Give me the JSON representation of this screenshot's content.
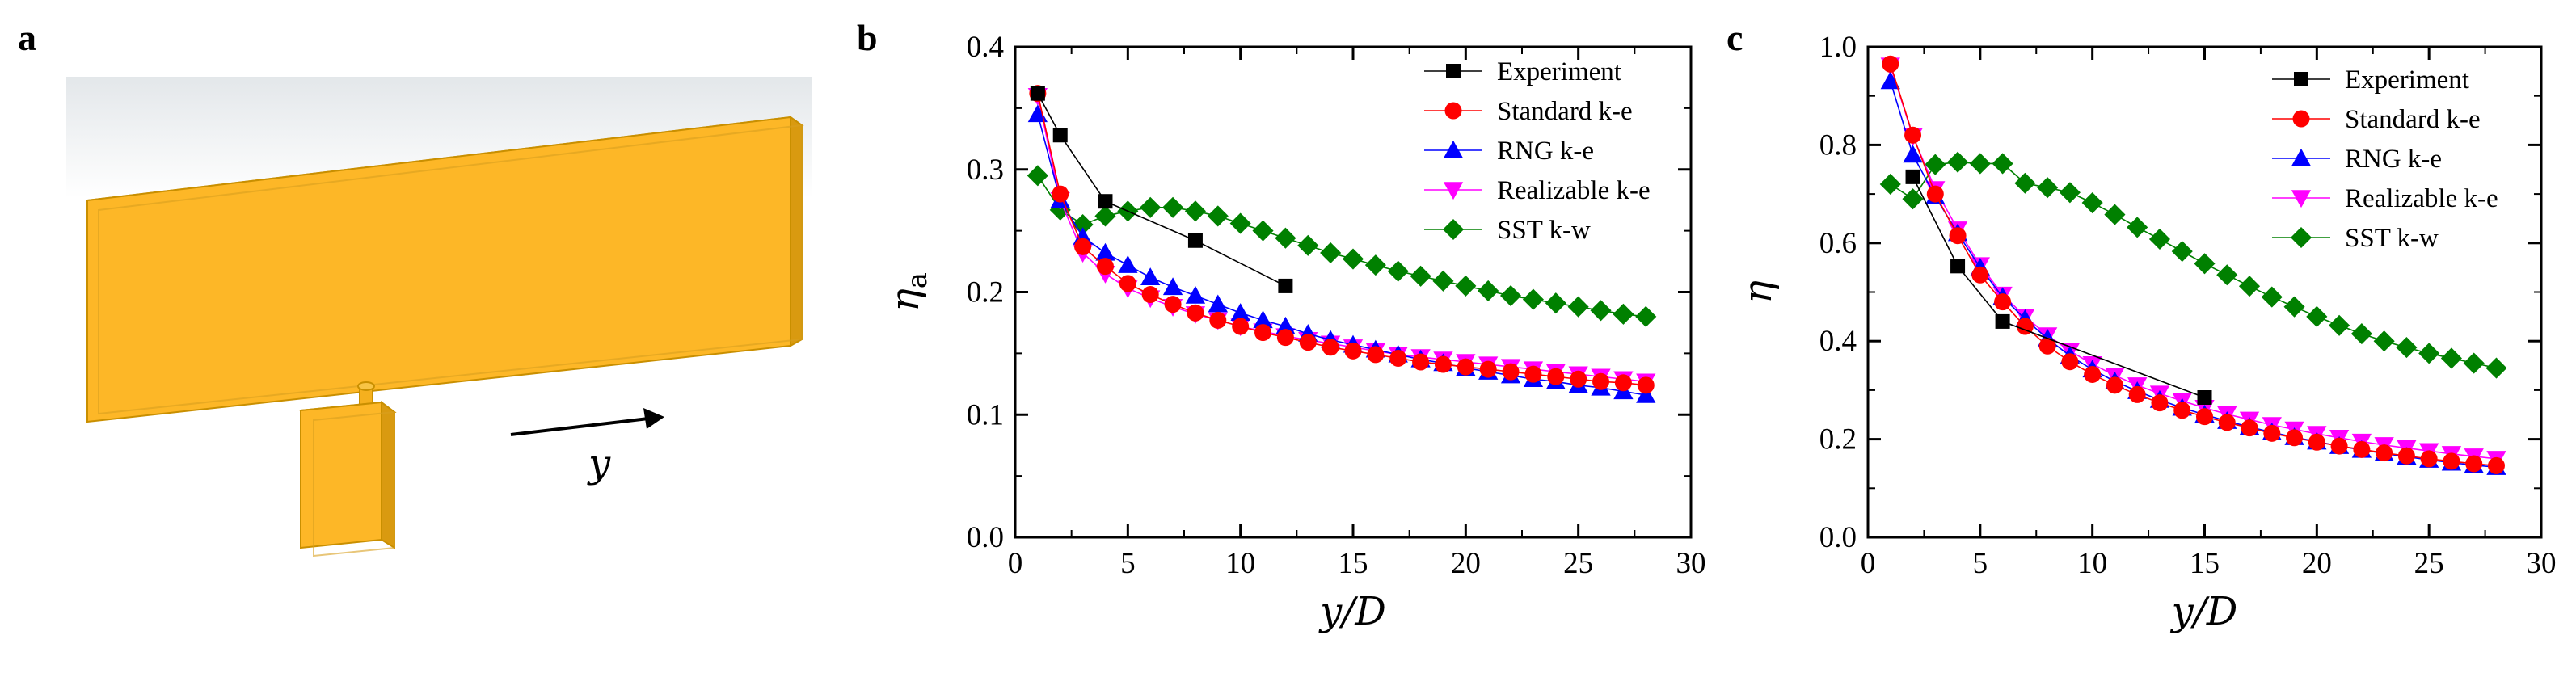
{
  "panels": {
    "a": {
      "letter": "a",
      "arrow_label": "y"
    },
    "b": {
      "letter": "b"
    },
    "c": {
      "letter": "c"
    }
  },
  "series_styles": [
    {
      "name": "Experiment",
      "color": "#000000",
      "marker": "square"
    },
    {
      "name": "Standard k-e",
      "color": "#ff0000",
      "marker": "circle"
    },
    {
      "name": "RNG k-e",
      "color": "#0000ff",
      "marker": "triangle-up"
    },
    {
      "name": "Realizable k-e",
      "color": "#ff00ff",
      "marker": "triangle-down"
    },
    {
      "name": "SST k-w",
      "color": "#008000",
      "marker": "diamond"
    }
  ],
  "chart_data": [
    {
      "panel": "b",
      "type": "line",
      "xlabel": "y/D",
      "ylabel": "η_a",
      "ylabel_main": "η",
      "ylabel_sub": "a",
      "xlim": [
        0,
        30
      ],
      "ylim": [
        0,
        0.4
      ],
      "xticks": [
        "0",
        "5",
        "10",
        "15",
        "20",
        "25",
        "30"
      ],
      "yticks": [
        "0.0",
        "0.1",
        "0.2",
        "0.3",
        "0.4"
      ],
      "legend_position": "top-right",
      "series": [
        {
          "name": "Experiment",
          "x": [
            1,
            2,
            4,
            8,
            12
          ],
          "y": [
            0.362,
            0.328,
            0.274,
            0.242,
            0.205
          ]
        },
        {
          "name": "Standard k-e",
          "x": [
            1,
            2,
            3,
            4,
            5,
            6,
            7,
            8,
            9,
            10,
            11,
            12,
            13,
            14,
            15,
            16,
            17,
            18,
            19,
            20,
            21,
            22,
            23,
            24,
            25,
            26,
            27,
            28
          ],
          "y": [
            0.362,
            0.28,
            0.237,
            0.221,
            0.207,
            0.198,
            0.19,
            0.183,
            0.177,
            0.172,
            0.167,
            0.163,
            0.159,
            0.155,
            0.152,
            0.149,
            0.146,
            0.143,
            0.141,
            0.139,
            0.137,
            0.135,
            0.133,
            0.131,
            0.129,
            0.127,
            0.126,
            0.124
          ]
        },
        {
          "name": "RNG k-e",
          "x": [
            1,
            2,
            3,
            4,
            5,
            6,
            7,
            8,
            9,
            10,
            11,
            12,
            13,
            14,
            15,
            16,
            17,
            18,
            19,
            20,
            21,
            22,
            23,
            24,
            25,
            26,
            27,
            28
          ],
          "y": [
            0.345,
            0.275,
            0.245,
            0.232,
            0.222,
            0.212,
            0.204,
            0.197,
            0.19,
            0.183,
            0.177,
            0.172,
            0.166,
            0.161,
            0.157,
            0.153,
            0.149,
            0.145,
            0.142,
            0.138,
            0.135,
            0.132,
            0.129,
            0.127,
            0.124,
            0.122,
            0.119,
            0.116
          ]
        },
        {
          "name": "Realizable k-e",
          "x": [
            1,
            2,
            3,
            4,
            5,
            6,
            7,
            8,
            9,
            10,
            11,
            12,
            13,
            14,
            15,
            16,
            17,
            18,
            19,
            20,
            21,
            22,
            23,
            24,
            25,
            26,
            27,
            28
          ],
          "y": [
            0.36,
            0.275,
            0.232,
            0.215,
            0.203,
            0.195,
            0.188,
            0.182,
            0.177,
            0.172,
            0.168,
            0.164,
            0.161,
            0.158,
            0.155,
            0.152,
            0.149,
            0.147,
            0.145,
            0.143,
            0.141,
            0.139,
            0.137,
            0.135,
            0.133,
            0.131,
            0.129,
            0.127
          ]
        },
        {
          "name": "SST k-w",
          "x": [
            1,
            2,
            3,
            4,
            5,
            6,
            7,
            8,
            9,
            10,
            11,
            12,
            13,
            14,
            15,
            16,
            17,
            18,
            19,
            20,
            21,
            22,
            23,
            24,
            25,
            26,
            27,
            28
          ],
          "y": [
            0.295,
            0.267,
            0.255,
            0.262,
            0.266,
            0.269,
            0.269,
            0.266,
            0.262,
            0.256,
            0.25,
            0.244,
            0.238,
            0.232,
            0.227,
            0.222,
            0.217,
            0.213,
            0.209,
            0.205,
            0.201,
            0.197,
            0.194,
            0.191,
            0.188,
            0.185,
            0.182,
            0.18
          ]
        }
      ]
    },
    {
      "panel": "c",
      "type": "line",
      "xlabel": "y/D",
      "ylabel": "η",
      "xlim": [
        0,
        30
      ],
      "ylim": [
        0,
        1.0
      ],
      "xticks": [
        "0",
        "5",
        "10",
        "15",
        "20",
        "25",
        "30"
      ],
      "yticks": [
        "0.0",
        "0.2",
        "0.4",
        "0.6",
        "0.8",
        "1.0"
      ],
      "legend_position": "top-right",
      "series": [
        {
          "name": "Experiment",
          "x": [
            2,
            4,
            6,
            15
          ],
          "y": [
            0.735,
            0.553,
            0.44,
            0.285
          ]
        },
        {
          "name": "Standard k-e",
          "x": [
            1,
            2,
            3,
            4,
            5,
            6,
            7,
            8,
            9,
            10,
            11,
            12,
            13,
            14,
            15,
            16,
            17,
            18,
            19,
            20,
            21,
            22,
            23,
            24,
            25,
            26,
            27,
            28
          ],
          "y": [
            0.965,
            0.82,
            0.7,
            0.615,
            0.535,
            0.48,
            0.43,
            0.39,
            0.358,
            0.332,
            0.31,
            0.291,
            0.274,
            0.259,
            0.246,
            0.234,
            0.223,
            0.212,
            0.203,
            0.194,
            0.186,
            0.179,
            0.172,
            0.166,
            0.16,
            0.155,
            0.15,
            0.146
          ]
        },
        {
          "name": "RNG k-e",
          "x": [
            1,
            2,
            3,
            4,
            5,
            6,
            7,
            8,
            9,
            10,
            11,
            12,
            13,
            14,
            15,
            16,
            17,
            18,
            19,
            20,
            21,
            22,
            23,
            24,
            25,
            26,
            27,
            28
          ],
          "y": [
            0.93,
            0.78,
            0.695,
            0.62,
            0.55,
            0.49,
            0.445,
            0.405,
            0.37,
            0.342,
            0.318,
            0.298,
            0.28,
            0.264,
            0.25,
            0.237,
            0.225,
            0.214,
            0.204,
            0.195,
            0.186,
            0.178,
            0.171,
            0.164,
            0.158,
            0.152,
            0.147,
            0.143
          ]
        },
        {
          "name": "Realizable k-e",
          "x": [
            1,
            2,
            3,
            4,
            5,
            6,
            7,
            8,
            9,
            10,
            11,
            12,
            13,
            14,
            15,
            16,
            17,
            18,
            19,
            20,
            21,
            22,
            23,
            24,
            25,
            26,
            27,
            28
          ],
          "y": [
            0.962,
            0.818,
            0.71,
            0.628,
            0.555,
            0.495,
            0.45,
            0.412,
            0.38,
            0.353,
            0.33,
            0.31,
            0.293,
            0.278,
            0.264,
            0.251,
            0.24,
            0.229,
            0.22,
            0.211,
            0.203,
            0.195,
            0.188,
            0.182,
            0.176,
            0.17,
            0.165,
            0.16
          ]
        },
        {
          "name": "SST k-w",
          "x": [
            1,
            2,
            3,
            4,
            5,
            6,
            7,
            8,
            9,
            10,
            11,
            12,
            13,
            14,
            15,
            16,
            17,
            18,
            19,
            20,
            21,
            22,
            23,
            24,
            25,
            26,
            27,
            28
          ],
          "y": [
            0.72,
            0.69,
            0.76,
            0.765,
            0.762,
            0.762,
            0.722,
            0.713,
            0.703,
            0.682,
            0.658,
            0.632,
            0.608,
            0.583,
            0.558,
            0.535,
            0.512,
            0.49,
            0.47,
            0.45,
            0.432,
            0.415,
            0.4,
            0.387,
            0.375,
            0.365,
            0.355,
            0.345
          ]
        }
      ]
    }
  ]
}
